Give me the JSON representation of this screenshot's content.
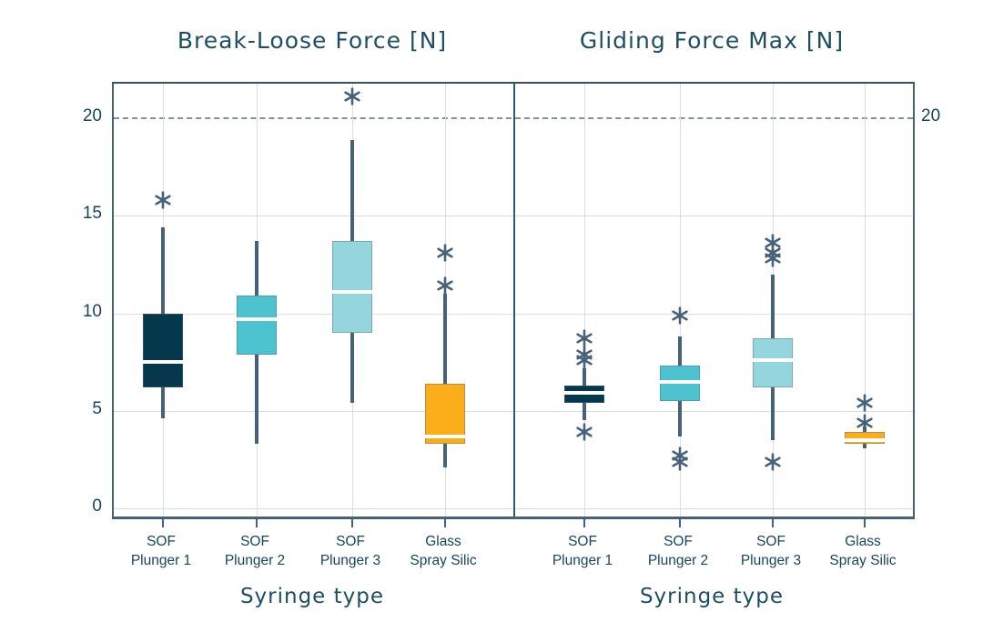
{
  "figure": {
    "background": "#ffffff",
    "axis_color": "#45617a",
    "grid_color": "#d9dee3",
    "whisker_color": "#46627a",
    "outlier_color": "#46627a",
    "text_color": "#1d4e63",
    "tick_label_color": "#16455f",
    "reference_line_color": "#7e94a6"
  },
  "chart_data": [
    {
      "type": "boxplot",
      "title": "Break-Loose Force [N]",
      "xlabel": "Syringe type",
      "ylabel": "",
      "ylim": [
        0,
        21.8
      ],
      "yticks": [
        0,
        5,
        10,
        15,
        20
      ],
      "grid": "on",
      "reference_line": {
        "value": 20,
        "style": "dashed"
      },
      "categories": [
        {
          "line1": "SOF",
          "line2": "Plunger 1"
        },
        {
          "line1": "SOF",
          "line2": "Plunger 2"
        },
        {
          "line1": "SOF",
          "line2": "Plunger 3"
        },
        {
          "line1": "Glass",
          "line2": "Spray Silic"
        }
      ],
      "boxes": [
        {
          "name": "SOF Plunger 1",
          "color": "#06384d",
          "whisker_low": 4.6,
          "q1": 6.2,
          "median": 7.5,
          "q3": 10.0,
          "whisker_high": 14.4,
          "outliers": [
            15.8
          ]
        },
        {
          "name": "SOF Plunger 2",
          "color": "#4cc3ce",
          "whisker_low": 3.3,
          "q1": 7.9,
          "median": 9.7,
          "q3": 10.9,
          "whisker_high": 13.7,
          "outliers": []
        },
        {
          "name": "SOF Plunger 3",
          "color": "#95d5de",
          "whisker_low": 5.4,
          "q1": 9.0,
          "median": 11.1,
          "q3": 13.7,
          "whisker_high": 18.9,
          "outliers": [
            21.1
          ]
        },
        {
          "name": "Glass Spray Silic",
          "color": "#fcae1a",
          "whisker_low": 2.1,
          "q1": 3.3,
          "median": 3.7,
          "q3": 6.4,
          "whisker_high": 11.0,
          "outliers": [
            13.1,
            11.4
          ]
        }
      ]
    },
    {
      "type": "boxplot",
      "title": "Gliding Force Max [N]",
      "xlabel": "Syringe type",
      "ylabel": "",
      "ylim": [
        0,
        21.8
      ],
      "yticks": [
        0,
        5,
        10,
        15,
        20
      ],
      "grid": "on",
      "reference_line": {
        "value": 20,
        "style": "dashed",
        "right_label": "20"
      },
      "categories": [
        {
          "line1": "SOF",
          "line2": "Plunger 1"
        },
        {
          "line1": "SOF",
          "line2": "Plunger 2"
        },
        {
          "line1": "SOF",
          "line2": "Plunger 3"
        },
        {
          "line1": "Glass",
          "line2": "Spray Silic"
        }
      ],
      "boxes": [
        {
          "name": "SOF Plunger 1",
          "color": "#06384d",
          "whisker_low": 4.5,
          "q1": 5.4,
          "median": 5.9,
          "q3": 6.3,
          "whisker_high": 7.2,
          "outliers": [
            8.7,
            7.9,
            7.6,
            3.9
          ]
        },
        {
          "name": "SOF Plunger 2",
          "color": "#4cc3ce",
          "whisker_low": 3.7,
          "q1": 5.5,
          "median": 6.5,
          "q3": 7.3,
          "whisker_high": 8.8,
          "outliers": [
            9.9,
            2.7,
            2.4
          ]
        },
        {
          "name": "SOF Plunger 3",
          "color": "#95d5de",
          "whisker_low": 3.5,
          "q1": 6.2,
          "median": 7.6,
          "q3": 8.7,
          "whisker_high": 12.0,
          "outliers": [
            13.6,
            13.1,
            12.8,
            2.4
          ]
        },
        {
          "name": "Glass Spray Silic",
          "color": "#fcae1a",
          "whisker_low": 3.1,
          "q1": 3.3,
          "median": 3.5,
          "q3": 3.9,
          "whisker_high": 4.2,
          "outliers": [
            5.4,
            4.4
          ]
        }
      ]
    }
  ]
}
